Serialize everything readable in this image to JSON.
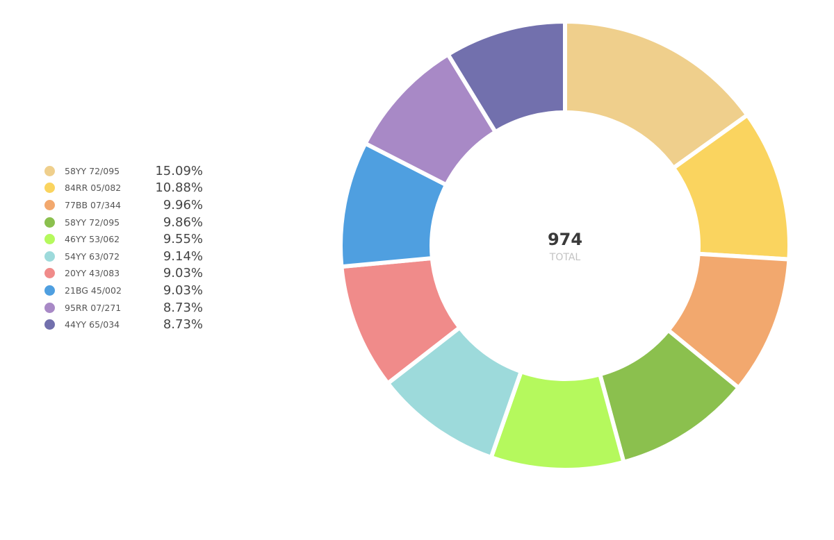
{
  "chart_data": {
    "type": "pie",
    "variant": "donut",
    "total_value": "974",
    "total_label": "TOTAL",
    "legend_position": "left",
    "slices": [
      {
        "label": "58YY 72/095",
        "percent": 15.09,
        "percent_text": "15.09%",
        "color": "#EFCF8C"
      },
      {
        "label": "84RR 05/082",
        "percent": 10.88,
        "percent_text": "10.88%",
        "color": "#FAD45F"
      },
      {
        "label": "77BB 07/344",
        "percent": 9.96,
        "percent_text": "9.96%",
        "color": "#F2A86E"
      },
      {
        "label": "58YY 72/095",
        "percent": 9.86,
        "percent_text": "9.86%",
        "color": "#8BC04E"
      },
      {
        "label": "46YY 53/062",
        "percent": 9.55,
        "percent_text": "9.55%",
        "color": "#B5F95D"
      },
      {
        "label": "54YY 63/072",
        "percent": 9.14,
        "percent_text": "9.14%",
        "color": "#9DDADB"
      },
      {
        "label": "20YY 43/083",
        "percent": 9.03,
        "percent_text": "9.03%",
        "color": "#F08B8A"
      },
      {
        "label": "21BG 45/002",
        "percent": 9.03,
        "percent_text": "9.03%",
        "color": "#4F9FE0"
      },
      {
        "label": "95RR 07/271",
        "percent": 8.73,
        "percent_text": "8.73%",
        "color": "#A889C6"
      },
      {
        "label": "44YY 65/034",
        "percent": 8.73,
        "percent_text": "8.73%",
        "color": "#7270AD"
      }
    ]
  }
}
